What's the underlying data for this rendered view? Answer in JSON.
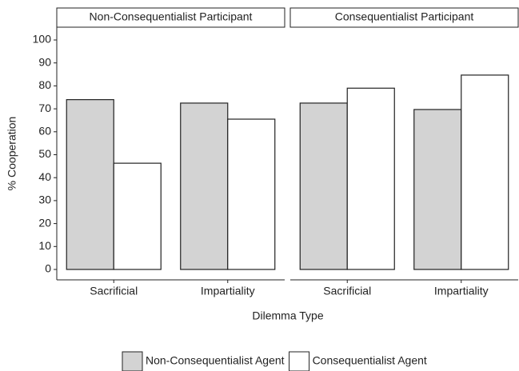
{
  "chart_data": {
    "type": "bar",
    "y_label": "% Cooperation",
    "x_label": "Dilemma Type",
    "ylim": [
      0,
      100
    ],
    "yticks": [
      0,
      10,
      20,
      30,
      40,
      50,
      60,
      70,
      80,
      90,
      100
    ],
    "legend": [
      {
        "name": "Non-Consequentialist Agent",
        "color": "#d3d3d3"
      },
      {
        "name": "Consequentialist Agent",
        "color": "#ffffff"
      }
    ],
    "facets": [
      {
        "title": "Non-Consequentialist Participant",
        "categories": [
          "Sacrificial",
          "Impartiality"
        ],
        "series": [
          {
            "name": "Non-Consequentialist Agent",
            "values": [
              74,
              72.5
            ]
          },
          {
            "name": "Consequentialist Agent",
            "values": [
              46.3,
              65.5
            ]
          }
        ]
      },
      {
        "title": "Consequentialist Participant",
        "categories": [
          "Sacrificial",
          "Impartiality"
        ],
        "series": [
          {
            "name": "Non-Consequentialist Agent",
            "values": [
              72.5,
              69.7
            ]
          },
          {
            "name": "Consequentialist Agent",
            "values": [
              79,
              84.7
            ]
          }
        ]
      }
    ]
  }
}
